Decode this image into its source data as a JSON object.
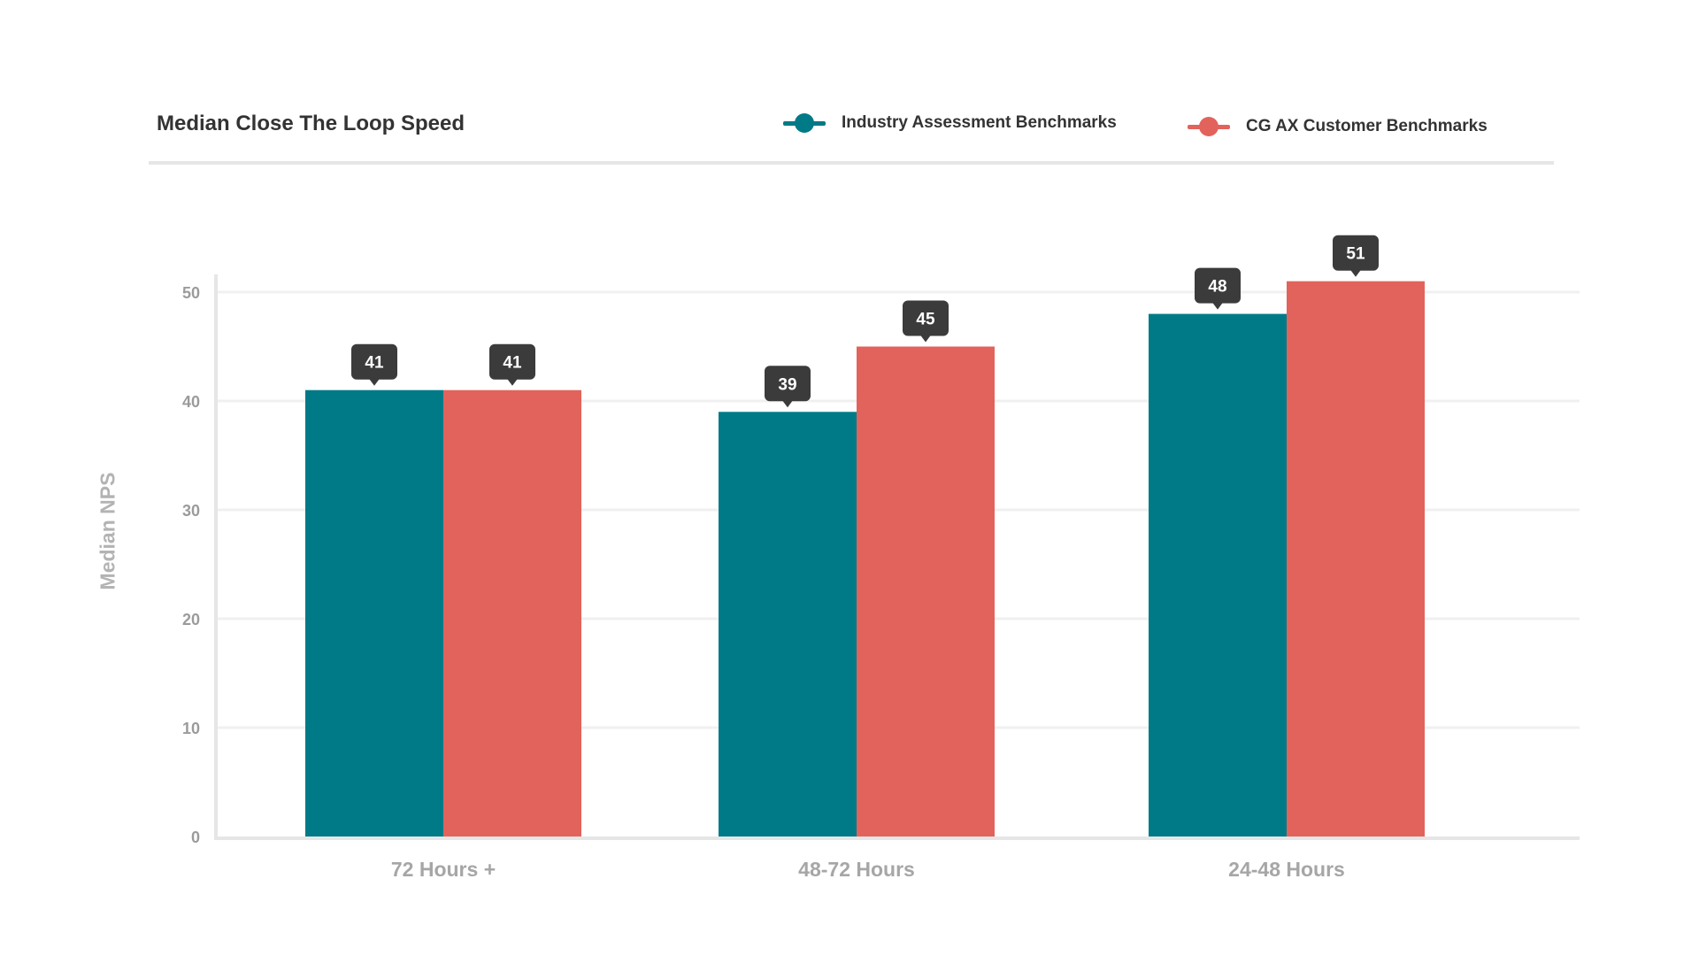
{
  "chart_data": {
    "type": "bar",
    "title": "Median Close The Loop Speed",
    "xlabel": "",
    "ylabel": "Median NPS",
    "ylim": [
      0,
      54
    ],
    "yticks": [
      0,
      10,
      20,
      30,
      40,
      50
    ],
    "grid": true,
    "legend_position": "top-right",
    "categories": [
      "72 Hours +",
      "48-72 Hours",
      "24-48 Hours"
    ],
    "series": [
      {
        "name": "Industry Assessment Benchmarks",
        "values": [
          41,
          39,
          48
        ],
        "color": "#007a87"
      },
      {
        "name": "CG AX Customer Benchmarks",
        "values": [
          41,
          45,
          51
        ],
        "color": "#e2635c"
      }
    ],
    "data_label_style": "dark-callout"
  }
}
